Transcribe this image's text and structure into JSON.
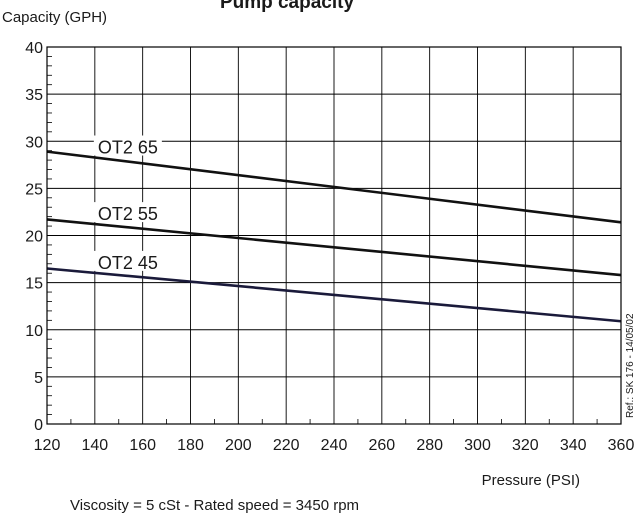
{
  "chart_data": {
    "type": "line",
    "title": "Pump  capacity",
    "ylabel": "Capacity  (GPH)",
    "xlabel": "Pressure (PSI)",
    "footnote": "Viscosity = 5 cSt  -  Rated speed = 3450 rpm",
    "reference": "Ref.: SK 176 - 14/05/02",
    "xlim": [
      120,
      360
    ],
    "ylim": [
      0,
      40
    ],
    "x_ticks": [
      "120",
      "140",
      "160",
      "180",
      "200",
      "220",
      "240",
      "260",
      "280",
      "300",
      "320",
      "340",
      "360"
    ],
    "y_ticks": [
      "0",
      "5",
      "10",
      "15",
      "20",
      "25",
      "30",
      "35",
      "40"
    ],
    "grid": true,
    "legend": "none",
    "series": [
      {
        "name": "OT2 65",
        "x": [
          120,
          360
        ],
        "y": [
          28.9,
          21.4
        ],
        "color": "#111111"
      },
      {
        "name": "OT2 55",
        "x": [
          120,
          360
        ],
        "y": [
          21.7,
          15.8
        ],
        "color": "#111111"
      },
      {
        "name": "OT2 45",
        "x": [
          120,
          360
        ],
        "y": [
          16.5,
          10.9
        ],
        "color": "#1a1a3a"
      }
    ]
  }
}
